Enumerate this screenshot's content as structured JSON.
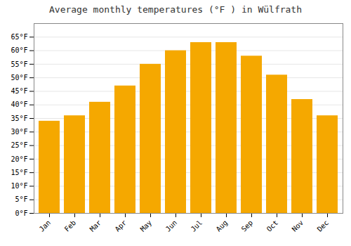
{
  "chart_data": {
    "type": "bar",
    "title": "Average monthly temperatures (°F ) in Wülfrath",
    "categories": [
      "Jan",
      "Feb",
      "Mar",
      "Apr",
      "May",
      "Jun",
      "Jul",
      "Aug",
      "Sep",
      "Oct",
      "Nov",
      "Dec"
    ],
    "values": [
      34,
      36,
      41,
      47,
      55,
      60,
      63,
      63,
      58,
      51,
      42,
      36
    ],
    "color": "#F5A800",
    "ylim": [
      0,
      70
    ],
    "yticks": [
      {
        "value": 0,
        "label": "0°F"
      },
      {
        "value": 5,
        "label": "5°F"
      },
      {
        "value": 10,
        "label": "10°F"
      },
      {
        "value": 15,
        "label": "15°F"
      },
      {
        "value": 20,
        "label": "20°F"
      },
      {
        "value": 25,
        "label": "25°F"
      },
      {
        "value": 30,
        "label": "30°F"
      },
      {
        "value": 35,
        "label": "35°F"
      },
      {
        "value": 40,
        "label": "40°F"
      },
      {
        "value": 45,
        "label": "45°F"
      },
      {
        "value": 50,
        "label": "50°F"
      },
      {
        "value": 55,
        "label": "55°F"
      },
      {
        "value": 60,
        "label": "60°F"
      },
      {
        "value": 65,
        "label": "65°F"
      }
    ],
    "grid": true
  }
}
